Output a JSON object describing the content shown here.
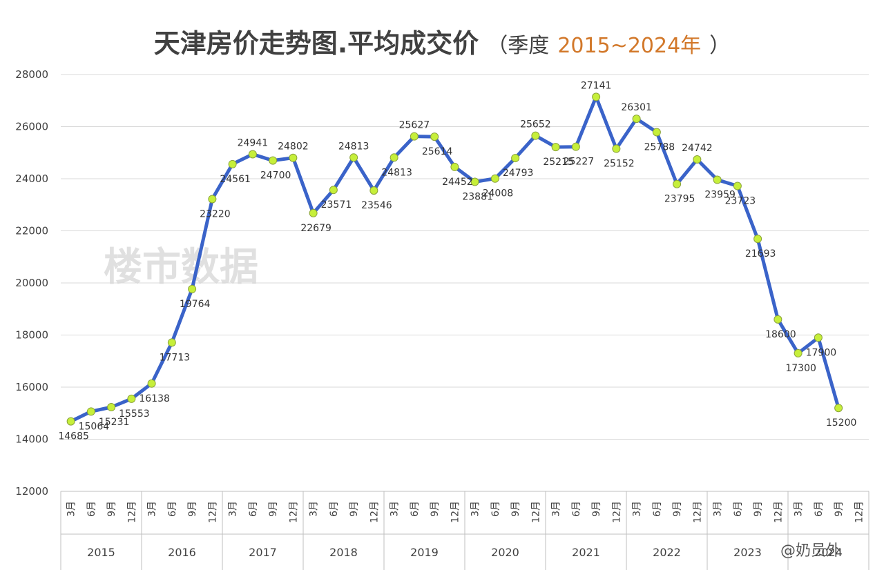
{
  "chart_data": {
    "type": "line",
    "title": "天津房价走势图.平均成交价",
    "title_prefix": "（季度",
    "title_years": "2015~2024年",
    "title_suffix": "）",
    "watermark": "楼市数据",
    "brand": "@奶员外",
    "ylim": [
      12000,
      28000
    ],
    "yticks": [
      "12000",
      "14000",
      "16000",
      "18000",
      "20000",
      "22000",
      "24000",
      "26000",
      "28000"
    ],
    "grid": true,
    "line_color": "#3a63c9",
    "marker_color": "#c6ef3a",
    "month_labels": [
      "3月",
      "6月",
      "9月",
      "12月"
    ],
    "years": [
      "2015",
      "2016",
      "2017",
      "2018",
      "2019",
      "2020",
      "2021",
      "2022",
      "2023",
      "2024"
    ],
    "values": [
      14685,
      15064,
      15231,
      15553,
      16138,
      17713,
      19764,
      23220,
      24561,
      24941,
      24700,
      24802,
      22679,
      23571,
      24813,
      23546,
      24813,
      25627,
      25614,
      24452,
      23881,
      24008,
      24793,
      25652,
      25215,
      25227,
      27141,
      25152,
      26301,
      25788,
      23795,
      24742,
      23959,
      23723,
      21693,
      18600,
      17300,
      17900,
      15200
    ]
  }
}
